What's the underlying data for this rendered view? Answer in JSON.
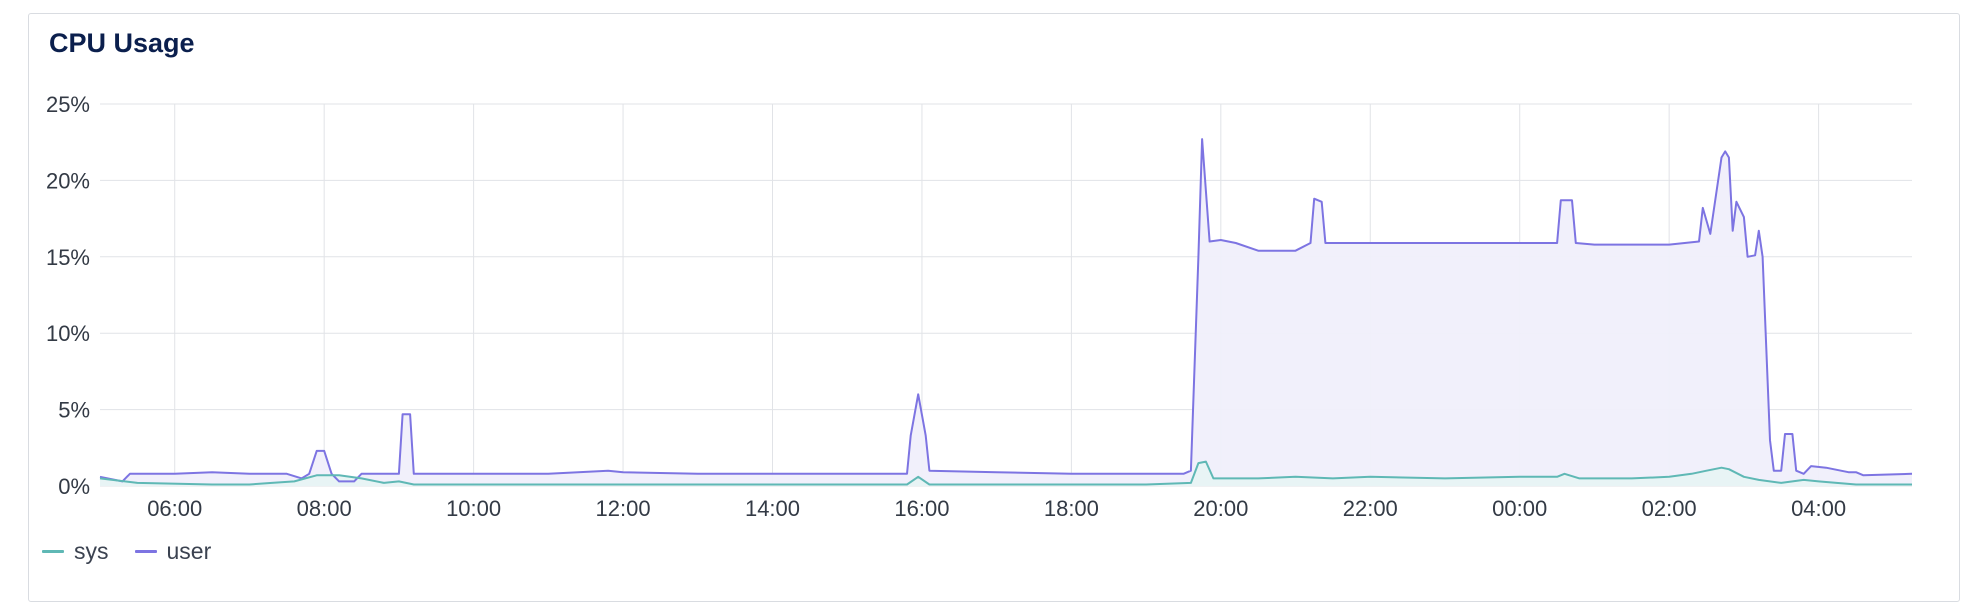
{
  "panel": {
    "title": "CPU Usage"
  },
  "colors": {
    "sys": "#5fb8b5",
    "user": "#7d74e2",
    "user_fill": "#f0effb",
    "sys_fill": "#e7f4f4",
    "grid": "#e1e3e7"
  },
  "chart_data": {
    "type": "area",
    "ylim": [
      0,
      25
    ],
    "xlim": [
      5.0,
      29.25
    ],
    "y_ticks": [
      0,
      5,
      10,
      15,
      20,
      25
    ],
    "y_tick_labels": [
      "0%",
      "5%",
      "10%",
      "15%",
      "20%",
      "25%"
    ],
    "x_ticks": [
      6,
      8,
      10,
      12,
      14,
      16,
      18,
      20,
      22,
      24,
      26,
      28
    ],
    "x_tick_labels": [
      "06:00",
      "08:00",
      "10:00",
      "12:00",
      "14:00",
      "16:00",
      "18:00",
      "20:00",
      "22:00",
      "00:00",
      "02:00",
      "04:00"
    ],
    "legend_position": "bottom-left",
    "series": [
      {
        "name": "sys",
        "points": [
          [
            5.0,
            0.5
          ],
          [
            5.5,
            0.2
          ],
          [
            6.5,
            0.1
          ],
          [
            7.0,
            0.1
          ],
          [
            7.3,
            0.2
          ],
          [
            7.6,
            0.3
          ],
          [
            7.9,
            0.7
          ],
          [
            8.2,
            0.7
          ],
          [
            8.5,
            0.5
          ],
          [
            8.8,
            0.2
          ],
          [
            9.0,
            0.3
          ],
          [
            9.2,
            0.1
          ],
          [
            10.0,
            0.1
          ],
          [
            12.0,
            0.1
          ],
          [
            14.0,
            0.1
          ],
          [
            15.8,
            0.1
          ],
          [
            15.95,
            0.6
          ],
          [
            16.1,
            0.1
          ],
          [
            17.0,
            0.1
          ],
          [
            19.0,
            0.1
          ],
          [
            19.6,
            0.2
          ],
          [
            19.7,
            1.5
          ],
          [
            19.8,
            1.6
          ],
          [
            19.9,
            0.5
          ],
          [
            20.5,
            0.5
          ],
          [
            21.0,
            0.6
          ],
          [
            21.5,
            0.5
          ],
          [
            22.0,
            0.6
          ],
          [
            23.0,
            0.5
          ],
          [
            24.0,
            0.6
          ],
          [
            24.5,
            0.6
          ],
          [
            24.6,
            0.8
          ],
          [
            24.8,
            0.5
          ],
          [
            25.5,
            0.5
          ],
          [
            26.0,
            0.6
          ],
          [
            26.3,
            0.8
          ],
          [
            26.5,
            1.0
          ],
          [
            26.7,
            1.2
          ],
          [
            26.8,
            1.1
          ],
          [
            27.0,
            0.6
          ],
          [
            27.2,
            0.4
          ],
          [
            27.5,
            0.2
          ],
          [
            27.8,
            0.4
          ],
          [
            28.0,
            0.3
          ],
          [
            28.5,
            0.1
          ],
          [
            29.25,
            0.1
          ]
        ]
      },
      {
        "name": "user",
        "points": [
          [
            5.0,
            0.6
          ],
          [
            5.3,
            0.3
          ],
          [
            5.4,
            0.8
          ],
          [
            6.0,
            0.8
          ],
          [
            6.5,
            0.9
          ],
          [
            7.0,
            0.8
          ],
          [
            7.5,
            0.8
          ],
          [
            7.7,
            0.5
          ],
          [
            7.8,
            0.8
          ],
          [
            7.9,
            2.3
          ],
          [
            8.0,
            2.3
          ],
          [
            8.1,
            0.8
          ],
          [
            8.2,
            0.3
          ],
          [
            8.4,
            0.3
          ],
          [
            8.5,
            0.8
          ],
          [
            9.0,
            0.8
          ],
          [
            9.05,
            4.7
          ],
          [
            9.15,
            4.7
          ],
          [
            9.2,
            0.8
          ],
          [
            10.0,
            0.8
          ],
          [
            11.0,
            0.8
          ],
          [
            11.8,
            1.0
          ],
          [
            12.0,
            0.9
          ],
          [
            13.0,
            0.8
          ],
          [
            14.0,
            0.8
          ],
          [
            15.0,
            0.8
          ],
          [
            15.8,
            0.8
          ],
          [
            15.85,
            3.3
          ],
          [
            15.95,
            6.0
          ],
          [
            16.05,
            3.3
          ],
          [
            16.1,
            1.0
          ],
          [
            17.0,
            0.9
          ],
          [
            18.0,
            0.8
          ],
          [
            19.5,
            0.8
          ],
          [
            19.6,
            1.0
          ],
          [
            19.7,
            15.0
          ],
          [
            19.75,
            22.7
          ],
          [
            19.85,
            16.0
          ],
          [
            20.0,
            16.1
          ],
          [
            20.2,
            15.9
          ],
          [
            20.5,
            15.4
          ],
          [
            21.0,
            15.4
          ],
          [
            21.2,
            15.9
          ],
          [
            21.25,
            18.8
          ],
          [
            21.35,
            18.6
          ],
          [
            21.4,
            15.9
          ],
          [
            22.0,
            15.9
          ],
          [
            23.0,
            15.9
          ],
          [
            24.0,
            15.9
          ],
          [
            24.5,
            15.9
          ],
          [
            24.55,
            18.7
          ],
          [
            24.7,
            18.7
          ],
          [
            24.75,
            15.9
          ],
          [
            25.0,
            15.8
          ],
          [
            26.0,
            15.8
          ],
          [
            26.4,
            16.0
          ],
          [
            26.45,
            18.2
          ],
          [
            26.55,
            16.5
          ],
          [
            26.7,
            21.5
          ],
          [
            26.75,
            21.9
          ],
          [
            26.8,
            21.5
          ],
          [
            26.85,
            16.7
          ],
          [
            26.9,
            18.6
          ],
          [
            27.0,
            17.6
          ],
          [
            27.05,
            15.0
          ],
          [
            27.15,
            15.1
          ],
          [
            27.2,
            16.7
          ],
          [
            27.25,
            15.0
          ],
          [
            27.3,
            9.0
          ],
          [
            27.35,
            3.0
          ],
          [
            27.4,
            1.0
          ],
          [
            27.5,
            1.0
          ],
          [
            27.55,
            3.4
          ],
          [
            27.65,
            3.4
          ],
          [
            27.7,
            1.0
          ],
          [
            27.8,
            0.8
          ],
          [
            27.9,
            1.3
          ],
          [
            28.1,
            1.2
          ],
          [
            28.4,
            0.9
          ],
          [
            28.5,
            0.9
          ],
          [
            28.6,
            0.7
          ],
          [
            29.25,
            0.8
          ]
        ]
      }
    ]
  }
}
